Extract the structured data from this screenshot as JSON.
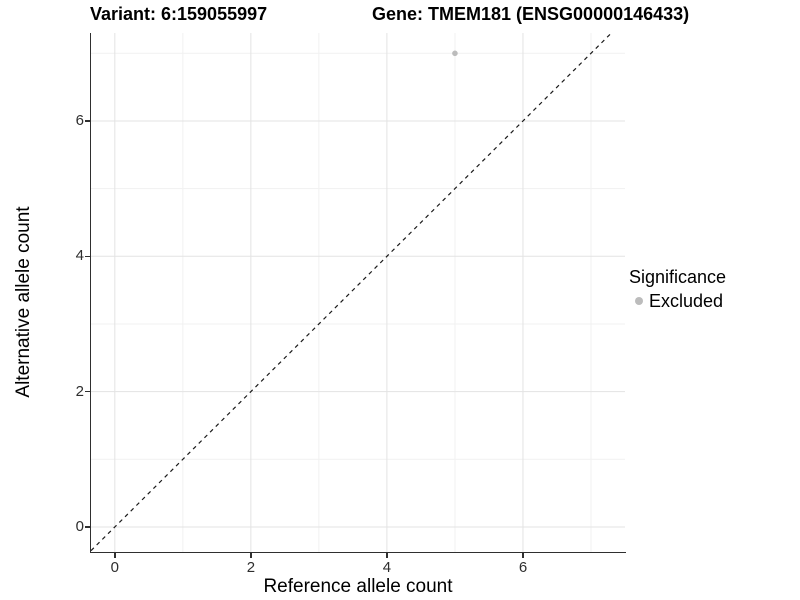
{
  "chart_data": {
    "type": "scatter",
    "title_left": "Variant: 6:159055997",
    "title_right": "Gene: TMEM181 (ENSG00000146433)",
    "xlabel": "Reference allele count",
    "ylabel": "Alternative allele count",
    "xlim": [
      -0.35,
      7.5
    ],
    "ylim": [
      -0.37,
      7.3
    ],
    "x_ticks": [
      0,
      2,
      4,
      6
    ],
    "y_ticks": [
      0,
      2,
      4,
      6
    ],
    "x_minor_ticks": [
      1,
      3,
      5,
      7
    ],
    "y_minor_ticks": [
      1,
      3,
      5,
      7
    ],
    "points": [
      {
        "x": 5,
        "y": 7,
        "significance": "Excluded"
      }
    ],
    "reference_line": {
      "intercept": 0,
      "slope": 1,
      "style": "dashed"
    },
    "legend": {
      "title": "Significance",
      "position": "right",
      "items": [
        {
          "label": "Excluded",
          "color": "#bcbcbc"
        }
      ]
    },
    "grid": "on",
    "colors": {
      "point": "#bcbcbc",
      "grid_major": "#e3e3e3",
      "grid_minor": "#f1f1f1",
      "axis_line": "#2f2f2f",
      "reference_line": "#1a1a1a",
      "background": "#ffffff"
    }
  }
}
